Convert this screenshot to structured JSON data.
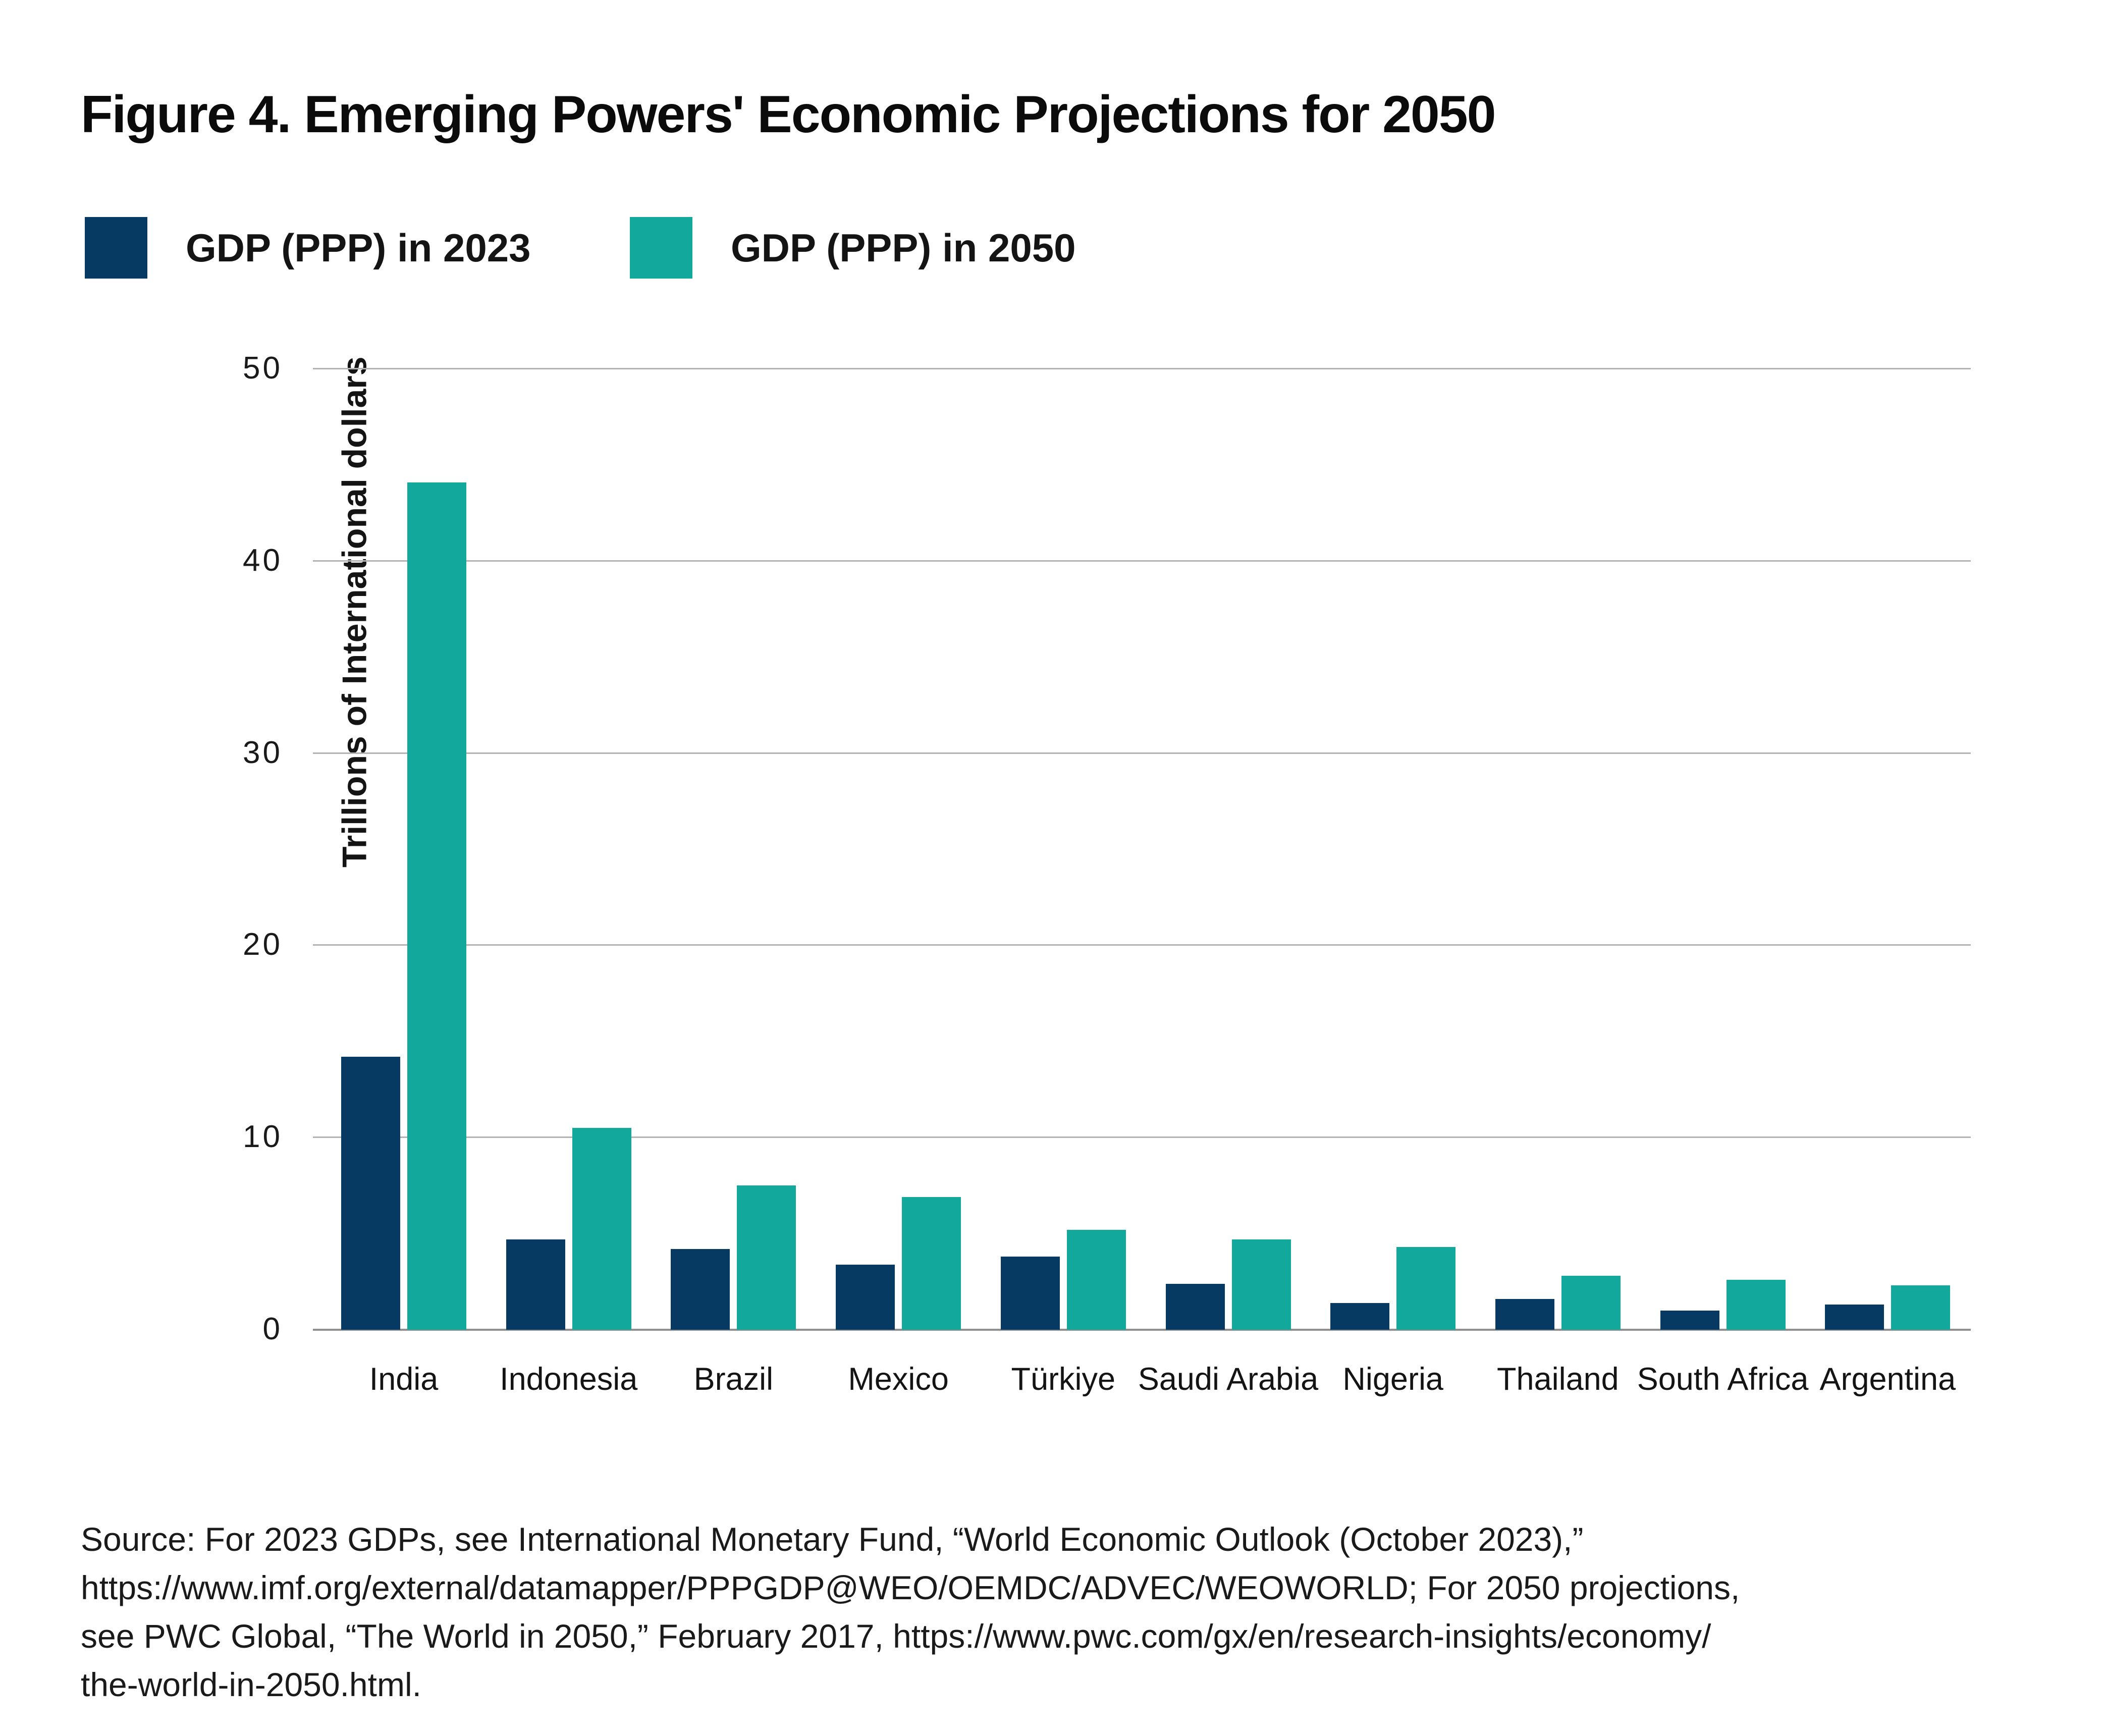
{
  "title": "Figure 4. Emerging Powers' Economic Projections for 2050",
  "legend": [
    {
      "label": "GDP (PPP) in 2023",
      "color": "#063a62"
    },
    {
      "label": "GDP (PPP) in 2050",
      "color": "#13a89c"
    }
  ],
  "chart_data": {
    "type": "bar",
    "title": "Figure 4. Emerging Powers' Economic Projections for 2050",
    "xlabel": "",
    "ylabel": "Trillions of International dollars",
    "ylim": [
      0,
      50
    ],
    "yticks": [
      0,
      10,
      20,
      30,
      40,
      50
    ],
    "grid": "horizontal",
    "legend_position": "top-left",
    "categories": [
      "India",
      "Indonesia",
      "Brazil",
      "Mexico",
      "Türkiye",
      "Saudi Arabia",
      "Nigeria",
      "Thailand",
      "South Africa",
      "Argentina"
    ],
    "series": [
      {
        "name": "GDP (PPP) in 2023",
        "color": "#063a62",
        "values": [
          14.2,
          4.7,
          4.2,
          3.4,
          3.8,
          2.4,
          1.4,
          1.6,
          1.0,
          1.3
        ]
      },
      {
        "name": "GDP (PPP) in 2050",
        "color": "#13a89c",
        "values": [
          44.1,
          10.5,
          7.5,
          6.9,
          5.2,
          4.7,
          4.3,
          2.8,
          2.6,
          2.3
        ]
      }
    ]
  },
  "source_lines": [
    "Source: For 2023 GDPs, see International Monetary Fund, “World Economic Outlook (October 2023),”",
    "https://www.imf.org/external/datamapper/PPPGDP@WEO/OEMDC/ADVEC/WEOWORLD; For 2050 projections,",
    "see PWC Global, “The World in 2050,” February 2017, https://www.pwc.com/gx/en/research-insights/economy/",
    "the-world-in-2050.html."
  ]
}
